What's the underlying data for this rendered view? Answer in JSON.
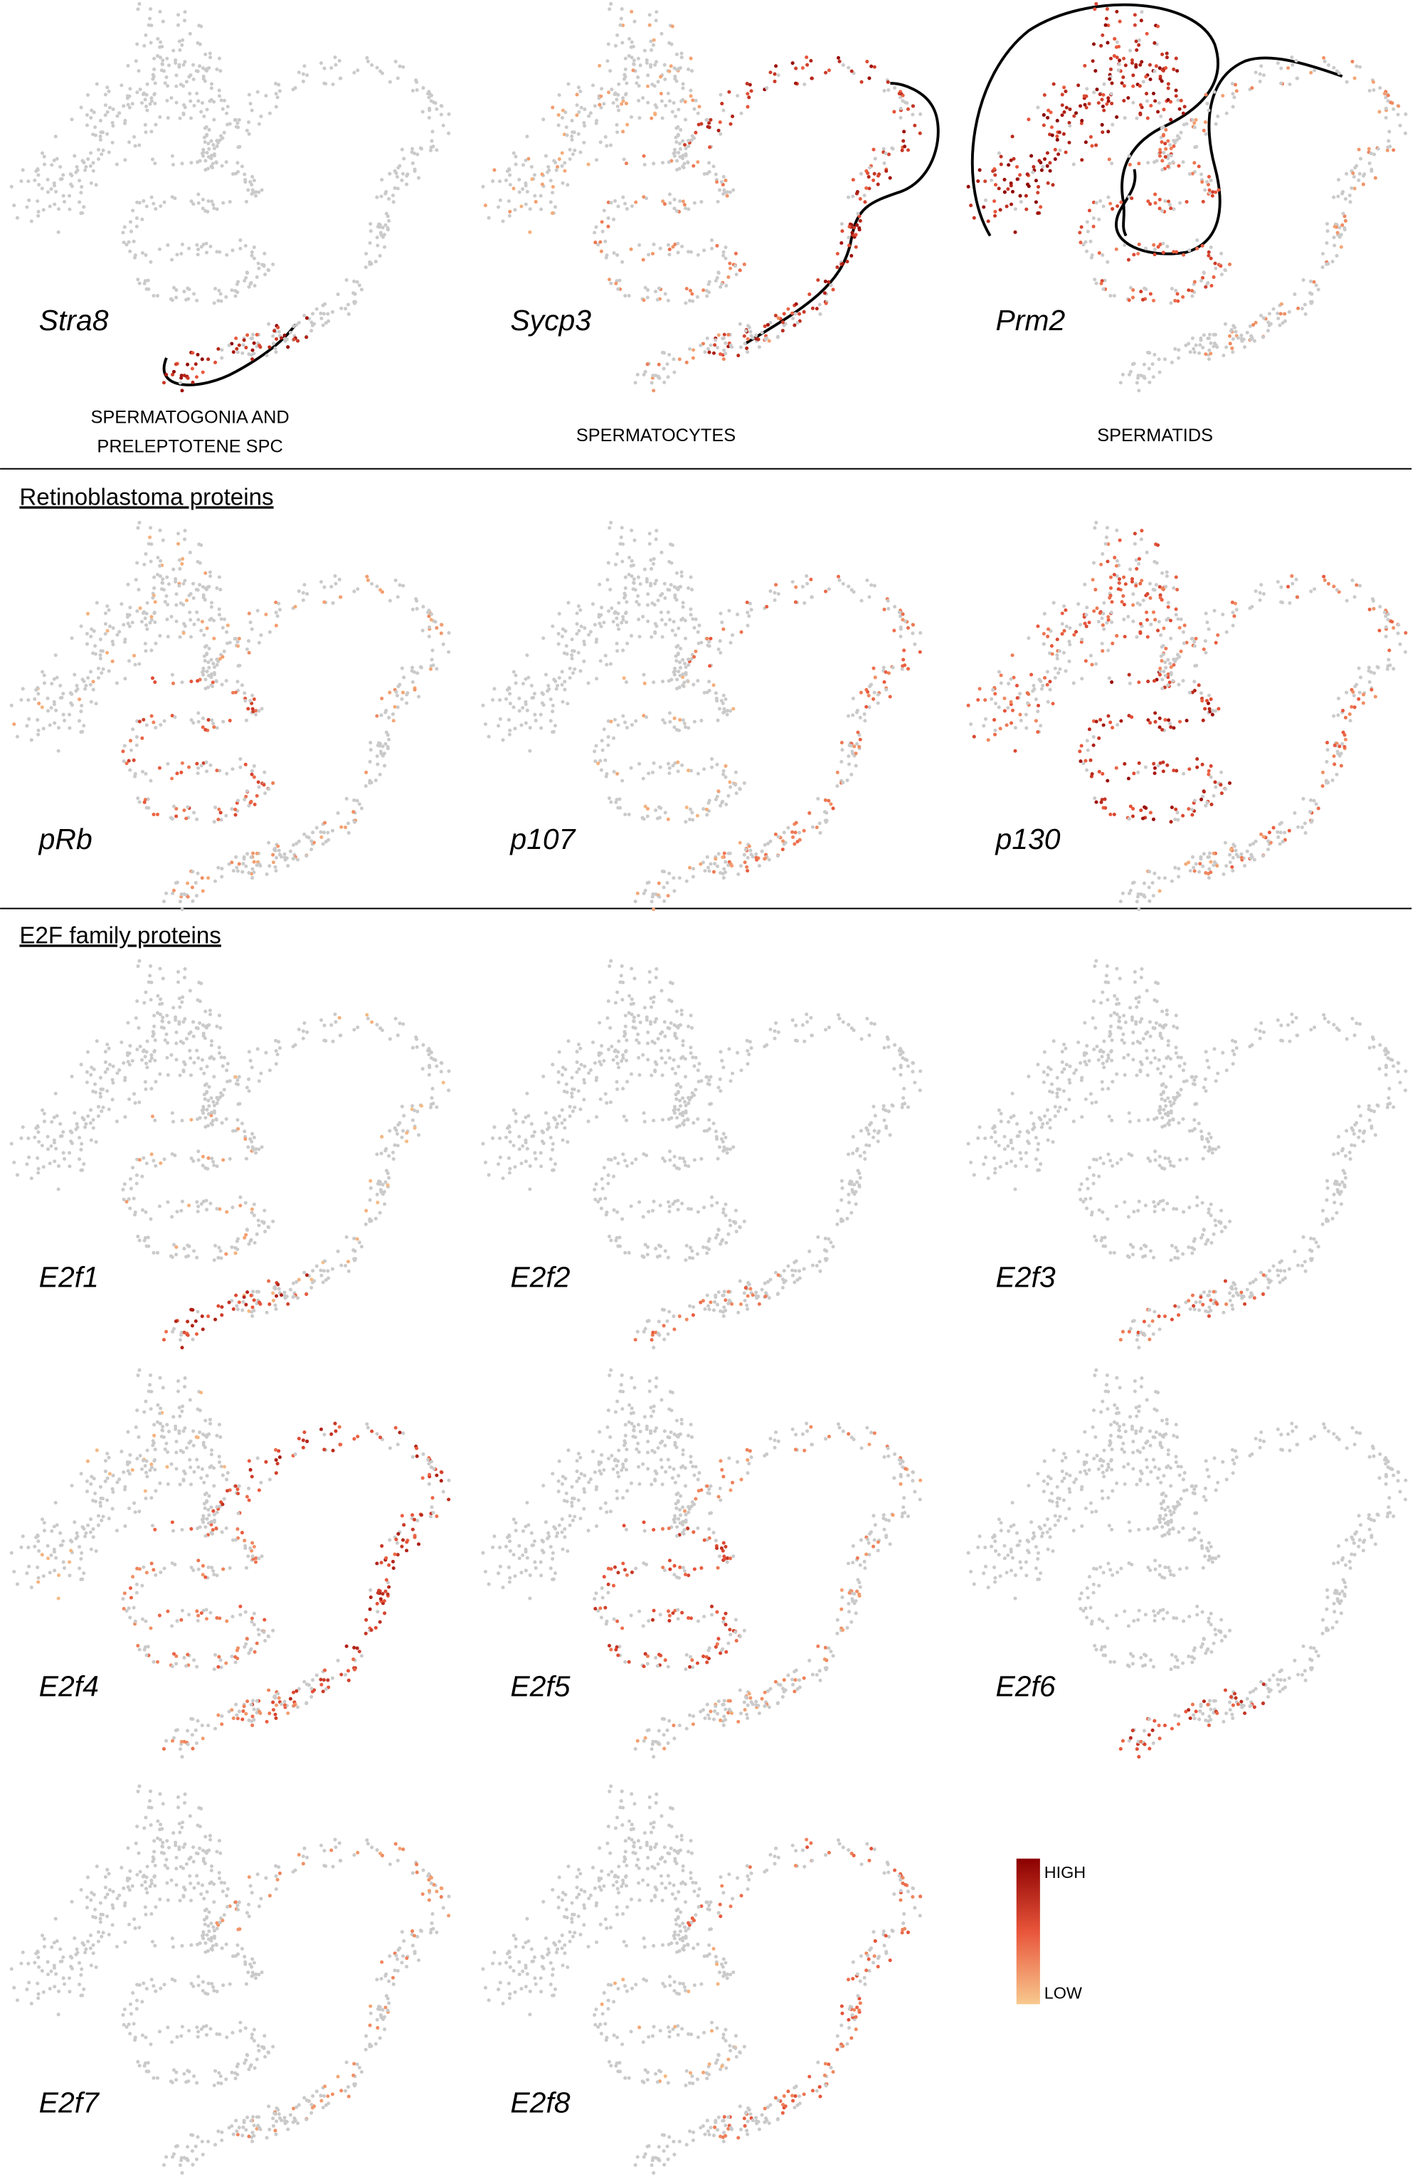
{
  "rows": [
    {
      "genes": [
        "Stra8",
        "Sycp3",
        "Prm2"
      ],
      "cell_types": [
        [
          "SPERMATOGONIA AND",
          "PRELEPTOTENE SPC"
        ],
        [
          "SPERMATOCYTES"
        ],
        [
          "SPERMATIDS"
        ]
      ]
    },
    {
      "heading": "Retinoblastoma proteins",
      "genes": [
        "pRb",
        "p107",
        "p130"
      ]
    },
    {
      "heading": "E2F family proteins",
      "genes": [
        "E2f1",
        "E2f2",
        "E2f3"
      ]
    },
    {
      "genes": [
        "E2f4",
        "E2f5",
        "E2f6"
      ]
    },
    {
      "genes": [
        "E2f7",
        "E2f8"
      ]
    }
  ],
  "legend": {
    "high": "HIGH",
    "low": "LOW"
  }
}
